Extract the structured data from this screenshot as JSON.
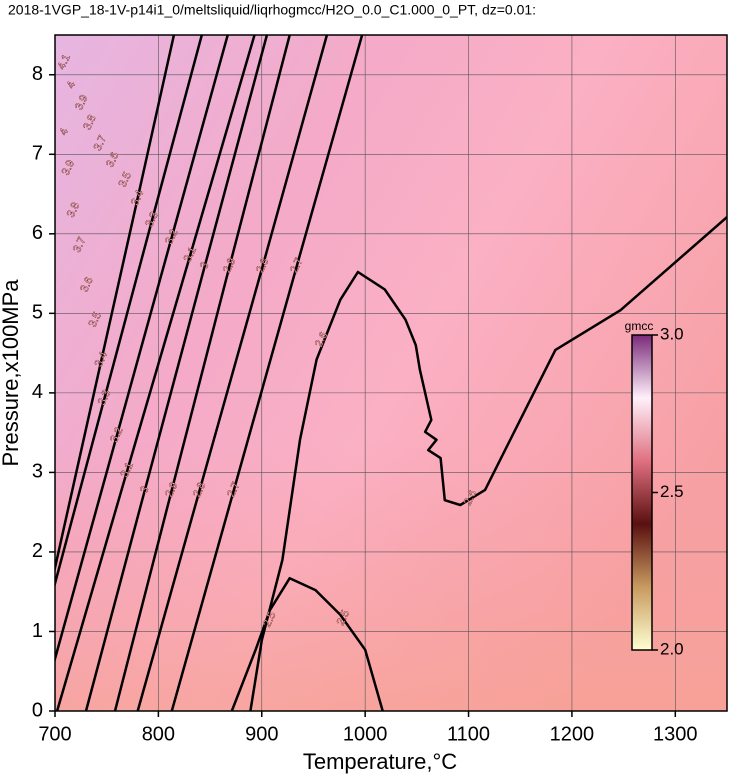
{
  "chart_data": {
    "type": "contour",
    "title": "2018-1VGP_18-1V-p14i1_0/meltsliquid/liqrhogmcc/H2O_0.0_C1.000_0_PT, dz=0.01:",
    "xlabel": "Temperature,°C",
    "ylabel": "Pressure,x100MPa",
    "xlim": [
      700,
      1350
    ],
    "ylim": [
      0,
      8.5
    ],
    "xticks": [
      700,
      800,
      900,
      1000,
      1100,
      1200,
      1300
    ],
    "yticks": [
      0,
      1,
      2,
      3,
      4,
      5,
      6,
      7,
      8
    ],
    "grid": true,
    "line_color": "#000000",
    "contours": [
      {
        "x": [
          813,
          873,
          934,
          997
        ],
        "y": [
          0,
          2.78,
          5.6,
          8.5
        ]
      },
      {
        "x": [
          780,
          840,
          901,
          963
        ],
        "y": [
          0,
          2.78,
          5.6,
          8.5
        ]
      },
      {
        "x": [
          758,
          813,
          869,
          927
        ],
        "y": [
          0,
          2.78,
          5.6,
          8.5
        ]
      },
      {
        "x": [
          730,
          787,
          845,
          905
        ],
        "y": [
          0,
          2.78,
          5.6,
          8.5
        ]
      },
      {
        "x": [
          702,
          770,
          831,
          893
        ],
        "y": [
          0,
          3.03,
          5.74,
          8.5
        ]
      },
      {
        "x": [
          686,
          760,
          813,
          867
        ],
        "y": [
          0,
          3.47,
          5.96,
          8.5
        ]
      },
      {
        "x": [
          667,
          748,
          794,
          842
        ],
        "y": [
          0,
          3.94,
          6.18,
          8.5
        ]
      },
      {
        "x": [
          669,
          745,
          780,
          815
        ],
        "y": [
          0,
          4.42,
          6.45,
          8.5
        ]
      },
      {
        "x": [
          889,
          900,
          920,
          937,
          953,
          976,
          993,
          1019,
          1039,
          1049,
          1053,
          1064,
          1058,
          1069,
          1061,
          1073,
          1077,
          1092,
          1116,
          1150,
          1184,
          1247,
          1350
        ],
        "y": [
          0,
          0.89,
          1.9,
          3.41,
          4.42,
          5.17,
          5.52,
          5.3,
          4.92,
          4.6,
          4.29,
          3.66,
          3.51,
          3.41,
          3.28,
          3.18,
          2.65,
          2.59,
          2.78,
          3.66,
          4.54,
          5.04,
          6.21
        ]
      },
      {
        "x": [
          871,
          894,
          908,
          927,
          952,
          976,
          1000,
          1017
        ],
        "y": [
          0,
          0.77,
          1.27,
          1.67,
          1.52,
          1.21,
          0.77,
          0
        ]
      }
    ],
    "contour_labels": [
      {
        "label": "2.7",
        "T": 873,
        "P": 2.78
      },
      {
        "label": "2.8",
        "T": 840,
        "P": 2.78
      },
      {
        "label": "2.9",
        "T": 813,
        "P": 2.78
      },
      {
        "label": "3",
        "T": 787,
        "P": 2.78
      },
      {
        "label": "3.1",
        "T": 770,
        "P": 3.03
      },
      {
        "label": "3.2",
        "T": 760,
        "P": 3.47
      },
      {
        "label": "3.3",
        "T": 748,
        "P": 3.94
      },
      {
        "label": "3.4",
        "T": 745,
        "P": 4.42
      },
      {
        "label": "3.5",
        "T": 739,
        "P": 4.92
      },
      {
        "label": "3.6",
        "T": 731,
        "P": 5.36
      },
      {
        "label": "3.7",
        "T": 724,
        "P": 5.86
      },
      {
        "label": "3.8",
        "T": 718,
        "P": 6.3
      },
      {
        "label": "3.9",
        "T": 713,
        "P": 6.83
      },
      {
        "label": "4",
        "T": 709,
        "P": 7.28
      },
      {
        "label": "2.7",
        "T": 934,
        "P": 5.6
      },
      {
        "label": "2.8",
        "T": 901,
        "P": 5.6
      },
      {
        "label": "2.9",
        "T": 869,
        "P": 5.6
      },
      {
        "label": "3",
        "T": 845,
        "P": 5.6
      },
      {
        "label": "3.1",
        "T": 831,
        "P": 5.74
      },
      {
        "label": "3.2",
        "T": 813,
        "P": 5.96
      },
      {
        "label": "3.3",
        "T": 794,
        "P": 6.18
      },
      {
        "label": "3.4",
        "T": 780,
        "P": 6.45
      },
      {
        "label": "3.5",
        "T": 768,
        "P": 6.68
      },
      {
        "label": "3.6",
        "T": 756,
        "P": 6.93
      },
      {
        "label": "3.7",
        "T": 744,
        "P": 7.14
      },
      {
        "label": "3.8",
        "T": 734,
        "P": 7.4
      },
      {
        "label": "3.9",
        "T": 726,
        "P": 7.65
      },
      {
        "label": "4",
        "T": 716,
        "P": 7.87
      },
      {
        "label": "4.1",
        "T": 709,
        "P": 8.16
      },
      {
        "label": "2.6",
        "T": 958,
        "P": 4.67
      },
      {
        "label": "2.6",
        "T": 1102,
        "P": 2.68
      },
      {
        "label": "2.5",
        "T": 908,
        "P": 1.15
      },
      {
        "label": "2.5",
        "T": 979,
        "P": 1.17
      }
    ],
    "colorbar": {
      "label": "gmcc",
      "lim": [
        2.0,
        3.0
      ],
      "ticks": [
        {
          "value": 2.0,
          "label": "2.0"
        },
        {
          "value": 2.5,
          "label": "2.5"
        },
        {
          "value": 3.0,
          "label": "3.0"
        }
      ],
      "colors": [
        "#ffffd2",
        "#c89a60",
        "#5a1010",
        "#e07080",
        "#fff0fa",
        "#7a2a7a"
      ]
    }
  }
}
